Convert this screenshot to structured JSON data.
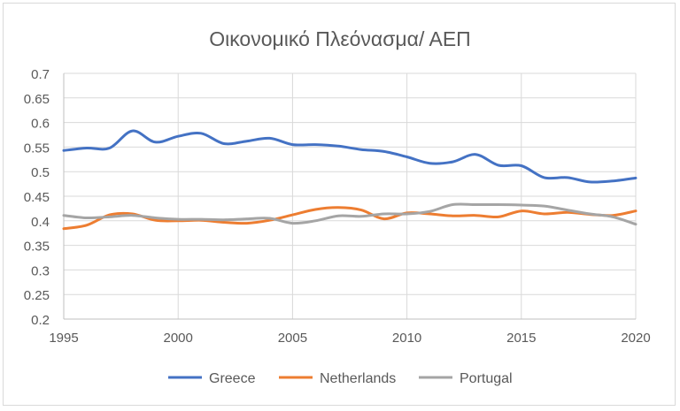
{
  "chart_data": {
    "type": "line",
    "title": "Οικονομικό Πλεόνασμα/ ΑΕΠ",
    "xlabel": "",
    "ylabel": "",
    "xlim": [
      1995,
      2020
    ],
    "ylim": [
      0.2,
      0.7
    ],
    "x_ticks": [
      "1995",
      "2000",
      "2005",
      "2010",
      "2015",
      "2020"
    ],
    "y_ticks": [
      "0.2",
      "0.25",
      "0.3",
      "0.35",
      "0.4",
      "0.45",
      "0.5",
      "0.55",
      "0.6",
      "0.65",
      "0.7"
    ],
    "x": [
      1995,
      1996,
      1997,
      1998,
      1999,
      2000,
      2001,
      2002,
      2003,
      2004,
      2005,
      2006,
      2007,
      2008,
      2009,
      2010,
      2011,
      2012,
      2013,
      2014,
      2015,
      2016,
      2017,
      2018,
      2019,
      2020
    ],
    "series": [
      {
        "name": "Greece",
        "color": "#4472c4",
        "values": [
          0.543,
          0.548,
          0.548,
          0.583,
          0.56,
          0.572,
          0.578,
          0.557,
          0.562,
          0.568,
          0.555,
          0.555,
          0.552,
          0.545,
          0.541,
          0.53,
          0.517,
          0.52,
          0.535,
          0.513,
          0.512,
          0.488,
          0.488,
          0.479,
          0.481,
          0.487
        ]
      },
      {
        "name": "Netherlands",
        "color": "#ed7d31",
        "values": [
          0.384,
          0.391,
          0.412,
          0.414,
          0.401,
          0.4,
          0.401,
          0.397,
          0.395,
          0.401,
          0.412,
          0.423,
          0.427,
          0.422,
          0.404,
          0.416,
          0.414,
          0.41,
          0.411,
          0.408,
          0.42,
          0.414,
          0.417,
          0.413,
          0.411,
          0.42
        ]
      },
      {
        "name": "Portugal",
        "color": "#a5a5a5",
        "values": [
          0.411,
          0.406,
          0.408,
          0.411,
          0.406,
          0.403,
          0.403,
          0.402,
          0.404,
          0.405,
          0.395,
          0.4,
          0.41,
          0.409,
          0.414,
          0.414,
          0.419,
          0.433,
          0.433,
          0.433,
          0.432,
          0.43,
          0.422,
          0.414,
          0.408,
          0.393
        ]
      }
    ],
    "legend_position": "bottom",
    "grid": true
  }
}
